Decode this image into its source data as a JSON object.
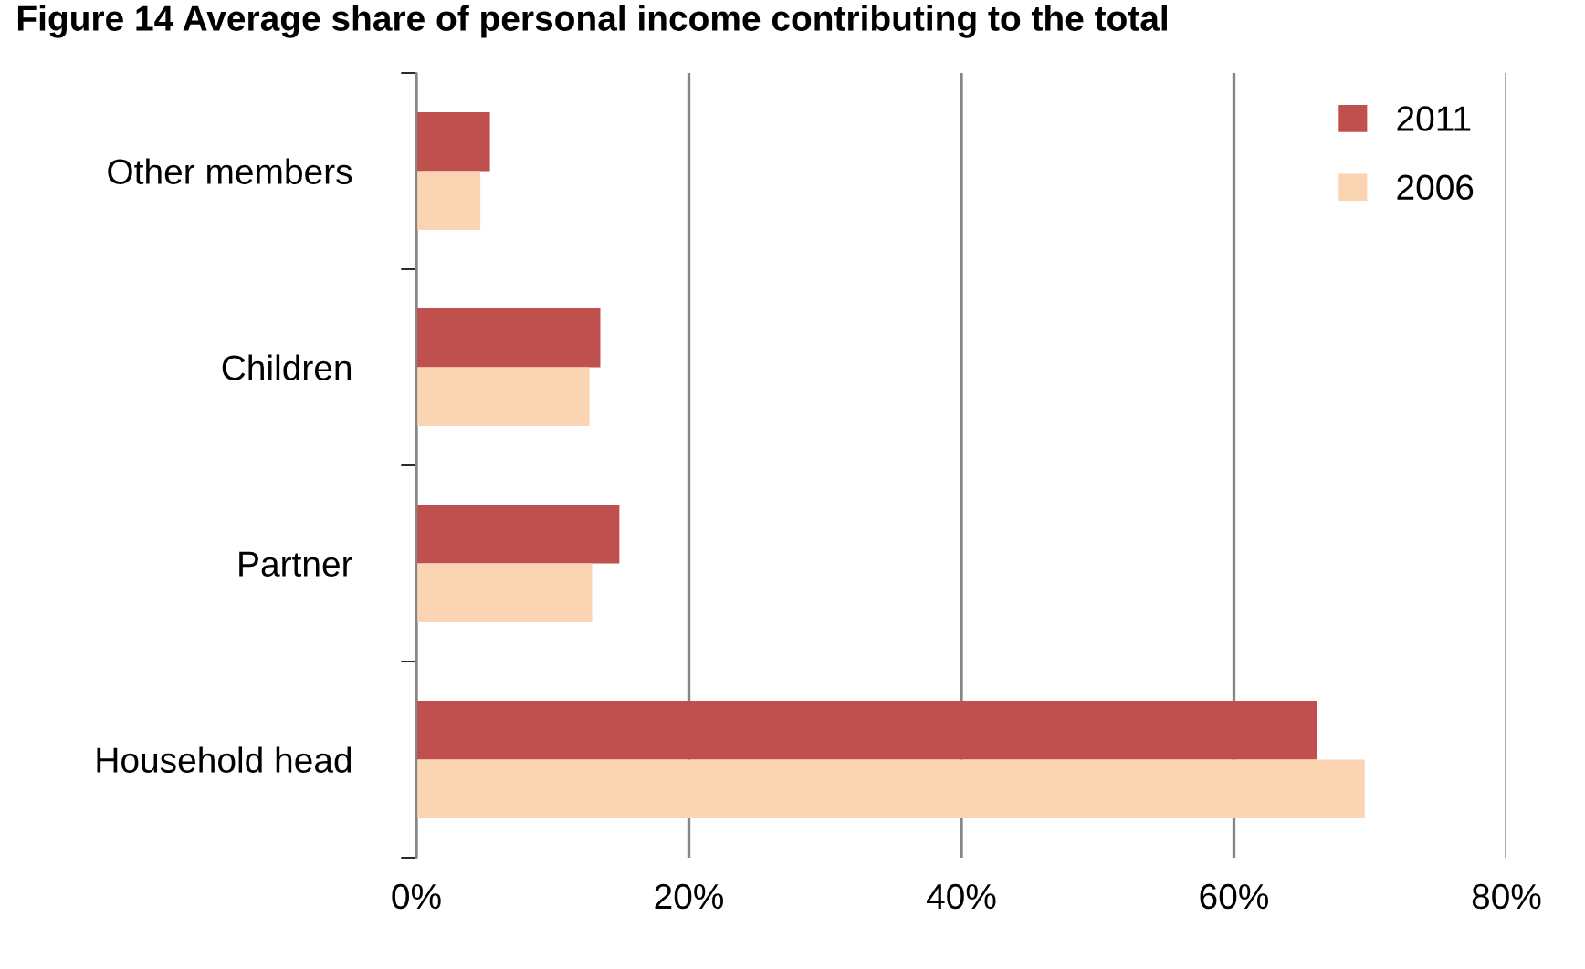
{
  "chart_data": {
    "type": "bar",
    "orientation": "horizontal",
    "title": "Figure 14 Average share of personal income contributing to the total",
    "categories": [
      "Other members",
      "Children",
      "Partner",
      "Household head"
    ],
    "series": [
      {
        "name": "2011",
        "color": "#c0504d",
        "values": [
          5.4,
          13.5,
          14.9,
          66.1
        ]
      },
      {
        "name": "2006",
        "color": "#fbd4b4",
        "values": [
          4.7,
          12.7,
          12.9,
          69.6
        ]
      }
    ],
    "xlim": [
      0,
      80
    ],
    "xticks": [
      {
        "value": 0,
        "label": "0%"
      },
      {
        "value": 20,
        "label": "20%"
      },
      {
        "value": 40,
        "label": "40%"
      },
      {
        "value": 60,
        "label": "60%"
      },
      {
        "value": 80,
        "label": "80%"
      }
    ],
    "grid": "x",
    "legend": "top right"
  }
}
